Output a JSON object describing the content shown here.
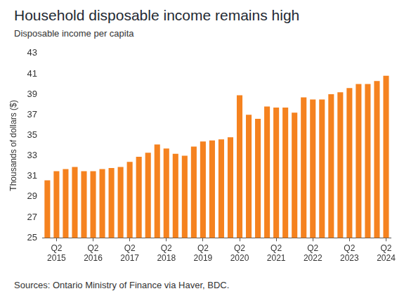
{
  "chart_data": {
    "type": "bar",
    "title": "Household disposable income remains high",
    "subtitle": "Disposable income per capita",
    "y_label": "Thousands of dollars ($)",
    "source": "Sources: Ontario Ministry of Finance via Haver, BDC.",
    "categories": [
      null,
      "Q2 2015",
      null,
      null,
      null,
      "Q2 2016",
      null,
      null,
      null,
      "Q2 2017",
      null,
      null,
      null,
      "Q2 2018",
      null,
      null,
      null,
      "Q2 2019",
      null,
      null,
      null,
      "Q2 2020",
      null,
      null,
      null,
      "Q2 2021",
      null,
      null,
      null,
      "Q2 2022",
      null,
      null,
      null,
      "Q2 2023",
      null,
      null,
      null,
      "Q2 2024"
    ],
    "values": [
      30.6,
      31.5,
      31.7,
      31.9,
      31.5,
      31.5,
      31.7,
      31.8,
      31.9,
      32.4,
      32.9,
      33.3,
      34.1,
      33.7,
      33.2,
      33.0,
      33.9,
      34.4,
      34.5,
      34.6,
      34.8,
      38.9,
      37.0,
      36.6,
      37.8,
      37.7,
      37.7,
      37.2,
      38.7,
      38.5,
      38.5,
      39.0,
      39.2,
      39.6,
      40.0,
      40.0,
      40.3,
      40.8
    ],
    "color": "#f5821f",
    "ylim": [
      25,
      43
    ],
    "yticks": [
      25,
      27,
      29,
      31,
      33,
      35,
      37,
      39,
      41,
      43
    ],
    "grid": false
  }
}
